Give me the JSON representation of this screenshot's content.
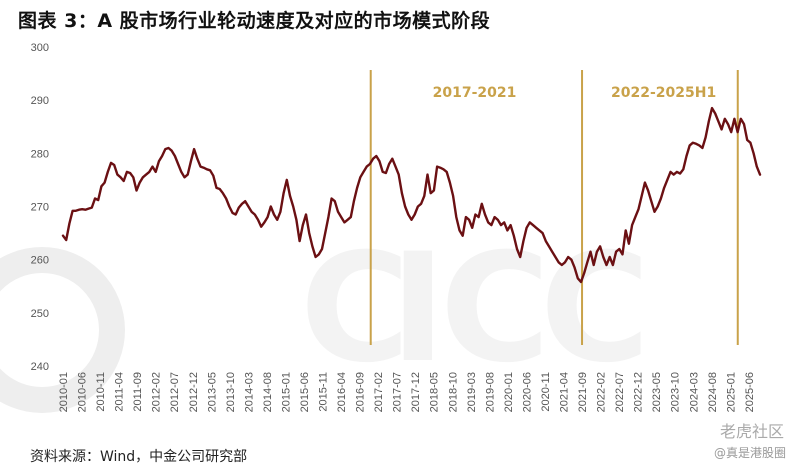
{
  "title": "图表 3：A 股市场行业轮动速度及对应的市场模式阶段",
  "source": "资料来源：Wind，中金公司研究部",
  "watermark": "老虎社区",
  "watermark_sub": "@真是港股圈",
  "colors": {
    "line": "#6b1013",
    "divider": "#c9a24a",
    "ghost": "#eeeeee"
  },
  "chart_data": {
    "type": "line",
    "title": "",
    "xlabel": "",
    "ylabel": "",
    "ylim": [
      240,
      300
    ],
    "yticks": [
      240,
      250,
      260,
      270,
      280,
      290,
      300
    ],
    "x_start": "2010-01",
    "x_end": "2025-09",
    "xtick_labels": [
      "2010-01",
      "2010-06",
      "2010-11",
      "2011-04",
      "2011-09",
      "2012-02",
      "2012-07",
      "2012-12",
      "2013-05",
      "2013-10",
      "2014-03",
      "2014-08",
      "2015-01",
      "2015-06",
      "2015-11",
      "2016-04",
      "2016-09",
      "2017-02",
      "2017-07",
      "2017-12",
      "2018-05",
      "2018-10",
      "2019-03",
      "2019-08",
      "2020-01",
      "2020-06",
      "2020-11",
      "2021-04",
      "2021-09",
      "2022-02",
      "2022-07",
      "2022-12",
      "2023-05",
      "2023-10",
      "2024-03",
      "2024-08",
      "2025-01",
      "2025-06"
    ],
    "dividers": [
      "2016-12",
      "2021-09",
      "2025-03"
    ],
    "period_labels": [
      {
        "text": "2017-2021",
        "x": "2019-04"
      },
      {
        "text": "2022-2025H1",
        "x": "2023-07"
      }
    ],
    "series": [
      {
        "values": [
          264.5,
          263.7,
          266.8,
          269.2,
          269.2,
          269.4,
          269.5,
          269.4,
          269.6,
          269.8,
          271.5,
          271.2,
          273.8,
          274.5,
          276.5,
          278.2,
          277.8,
          276.0,
          275.5,
          274.8,
          276.5,
          276.3,
          275.5,
          273.0,
          274.5,
          275.5,
          276.0,
          276.5,
          277.5,
          276.5,
          278.5,
          279.5,
          280.8,
          281.0,
          280.5,
          279.5,
          278.0,
          276.5,
          275.5,
          276.0,
          278.5,
          280.8,
          279.0,
          277.5,
          277.3,
          277.0,
          276.8,
          275.8,
          273.5,
          273.3,
          272.5,
          271.5,
          270.0,
          268.8,
          268.5,
          269.8,
          270.5,
          271.0,
          270.0,
          269.0,
          268.5,
          267.5,
          266.2,
          267.0,
          268.0,
          270.0,
          268.5,
          267.5,
          269.0,
          272.5,
          275.0,
          272.0,
          270.0,
          267.5,
          263.5,
          266.5,
          268.5,
          265.0,
          262.5,
          260.5,
          261.0,
          262.0,
          265.0,
          268.0,
          271.5,
          271.0,
          269.0,
          268.0,
          267.0,
          267.5,
          268.0,
          271.0,
          273.5,
          275.5,
          276.5,
          277.5,
          278.0,
          279.0,
          279.5,
          278.5,
          276.5,
          276.3,
          278.0,
          279.0,
          277.5,
          276.0,
          272.5,
          270.0,
          268.5,
          267.5,
          268.5,
          270.0,
          270.5,
          272.0,
          276.0,
          272.5,
          273.0,
          277.5,
          277.3,
          277.0,
          276.5,
          274.5,
          272.0,
          268.0,
          265.5,
          264.5,
          268.0,
          267.5,
          266.0,
          268.5,
          268.0,
          270.5,
          268.5,
          267.0,
          266.5,
          268.0,
          267.5,
          266.5,
          267.0,
          265.5,
          266.5,
          264.5,
          262.0,
          260.5,
          263.5,
          266.0,
          267.0,
          266.5,
          266.0,
          265.5,
          265.0,
          263.5,
          262.5,
          261.5,
          260.5,
          259.5,
          259.0,
          259.5,
          260.5,
          260.0,
          258.5,
          256.5,
          255.8,
          257.5,
          259.5,
          261.5,
          259.0,
          261.5,
          262.5,
          260.5,
          259.0,
          260.5,
          259.0,
          261.5,
          262.0,
          261.0,
          265.5,
          263.0,
          266.5,
          268.0,
          269.5,
          272.0,
          274.5,
          273.0,
          271.0,
          269.0,
          270.0,
          271.5,
          273.5,
          275.0,
          276.5,
          276.0,
          276.5,
          276.2,
          277.0,
          279.5,
          281.5,
          282.0,
          281.8,
          281.5,
          281.0,
          283.0,
          286.0,
          288.5,
          287.5,
          286.0,
          284.5,
          286.5,
          285.5,
          284.0,
          286.5,
          284.0,
          286.5,
          285.5,
          282.5,
          282.0,
          280.0,
          277.5,
          276.0
        ]
      }
    ]
  }
}
